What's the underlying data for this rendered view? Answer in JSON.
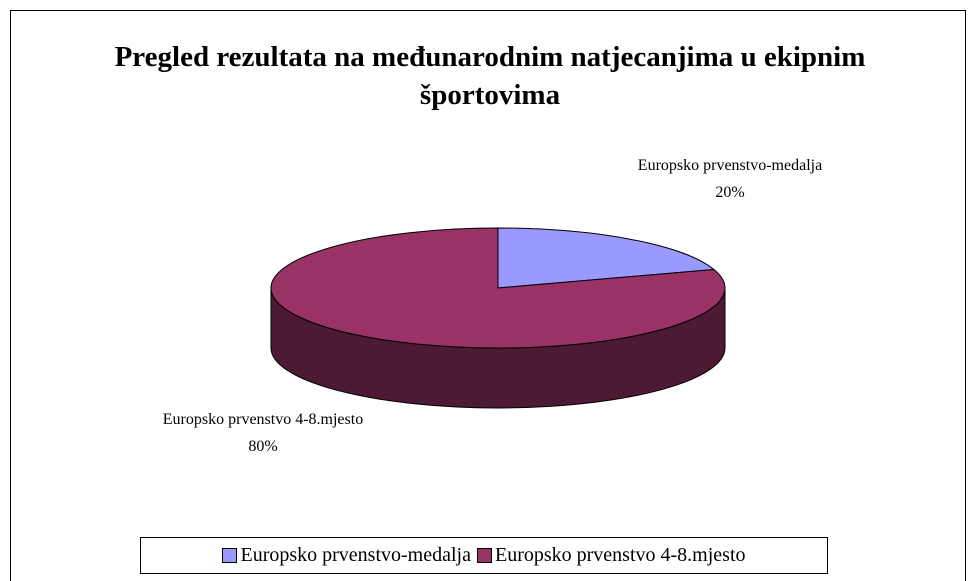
{
  "chart_data": {
    "type": "pie",
    "title": "Pregled rezultata na međunarodnim natjecanjima u ekipnim športovima",
    "categories": [
      "Europsko prvenstvo-medalja",
      "Europsko prvenstvo 4-8.mjesto"
    ],
    "values": [
      20,
      80
    ],
    "value_labels": [
      "20%",
      "80%"
    ],
    "colors": [
      "#9999ff",
      "#993366"
    ],
    "legend": "bottom"
  }
}
